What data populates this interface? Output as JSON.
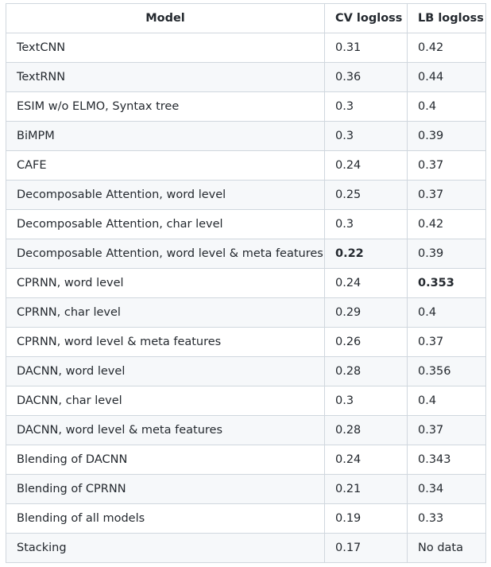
{
  "table": {
    "headers": [
      "Model",
      "CV logloss",
      "LB logloss"
    ],
    "rows": [
      {
        "model": "TextCNN",
        "cv": "0.31",
        "lb": "0.42"
      },
      {
        "model": "TextRNN",
        "cv": "0.36",
        "lb": "0.44"
      },
      {
        "model": "ESIM w/o ELMO, Syntax tree",
        "cv": "0.3",
        "lb": "0.4"
      },
      {
        "model": "BiMPM",
        "cv": "0.3",
        "lb": "0.39"
      },
      {
        "model": "CAFE",
        "cv": "0.24",
        "lb": "0.37"
      },
      {
        "model": "Decomposable Attention, word level",
        "cv": "0.25",
        "lb": "0.37"
      },
      {
        "model": "Decomposable Attention, char level",
        "cv": "0.3",
        "lb": "0.42"
      },
      {
        "model": "Decomposable Attention, word level & meta features",
        "cv": "0.22",
        "lb": "0.39",
        "bold_cv": true
      },
      {
        "model": "CPRNN, word level",
        "cv": "0.24",
        "lb": "0.353",
        "bold_lb": true
      },
      {
        "model": "CPRNN, char level",
        "cv": "0.29",
        "lb": "0.4"
      },
      {
        "model": "CPRNN, word level & meta features",
        "cv": "0.26",
        "lb": "0.37"
      },
      {
        "model": "DACNN, word level",
        "cv": "0.28",
        "lb": "0.356"
      },
      {
        "model": "DACNN, char level",
        "cv": "0.3",
        "lb": "0.4"
      },
      {
        "model": "DACNN, word level & meta features",
        "cv": "0.28",
        "lb": "0.37"
      },
      {
        "model": "Blending of DACNN",
        "cv": "0.24",
        "lb": "0.343"
      },
      {
        "model": "Blending of CPRNN",
        "cv": "0.21",
        "lb": "0.34"
      },
      {
        "model": "Blending of all models",
        "cv": "0.19",
        "lb": "0.33"
      },
      {
        "model": "Stacking",
        "cv": "0.17",
        "lb": "No data"
      }
    ]
  }
}
